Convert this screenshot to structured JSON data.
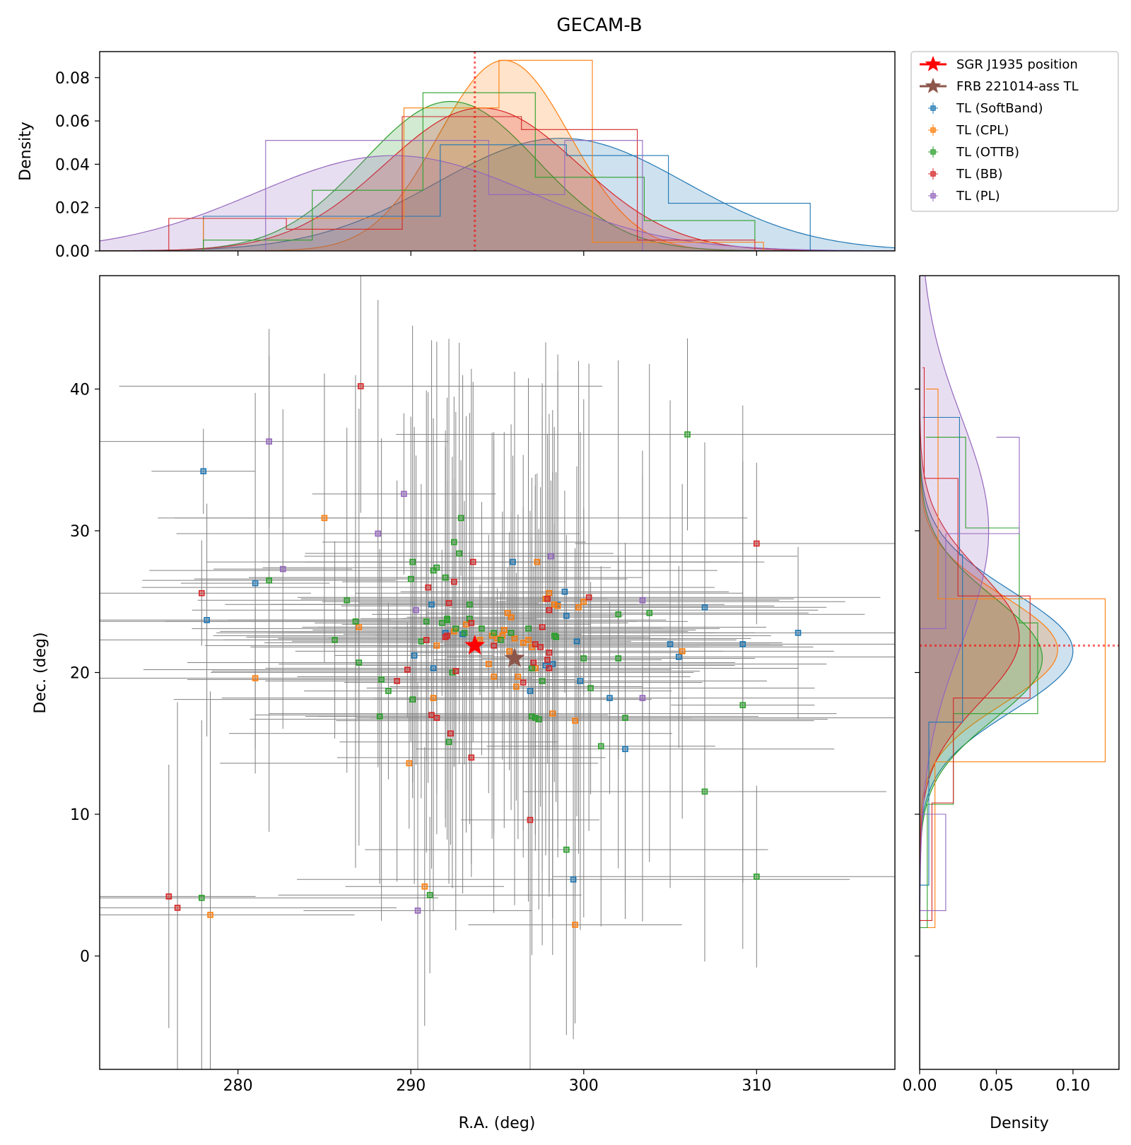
{
  "chart_data": {
    "type": "scatter",
    "title": "GECAM-B",
    "xlabel": "R.A. (deg)",
    "ylabel": "Dec. (deg)",
    "xlim": [
      272,
      318
    ],
    "ylim": [
      -8,
      48
    ],
    "x_ticks": [
      "280",
      "290",
      "300",
      "310"
    ],
    "y_ticks": [
      "0",
      "10",
      "20",
      "30",
      "40"
    ],
    "top_hist": {
      "ylabel": "Density",
      "ylim": [
        0,
        0.092
      ],
      "y_ticks": [
        "0.00",
        "0.02",
        "0.04",
        "0.06",
        "0.08"
      ],
      "reference_line_x": 293.7
    },
    "right_hist": {
      "xlabel": "Density",
      "xlim": [
        0,
        0.13
      ],
      "x_ticks": [
        "0.00",
        "0.05",
        "0.10"
      ],
      "reference_line_y": 21.9
    },
    "legend": {
      "placement": "outside top-right",
      "entries": [
        "SGR J1935 position",
        "FRB 221014-ass TL",
        "TL (SoftBand)",
        "TL (CPL)",
        "TL (OTTB)",
        "TL (BB)",
        "TL (PL)"
      ]
    },
    "reference_points": [
      {
        "name": "SGR J1935 position",
        "x": 293.7,
        "y": 21.9,
        "color": "#ff0000",
        "marker": "star"
      },
      {
        "name": "FRB 221014-ass TL",
        "x": 296.0,
        "y": 21.0,
        "color": "#8c564b",
        "marker": "star"
      }
    ],
    "series": [
      {
        "name": "TL (SoftBand)",
        "color": "#1f77b4",
        "points": [
          [
            278.0,
            34.2
          ],
          [
            278.2,
            23.7
          ],
          [
            281.0,
            26.3
          ],
          [
            291.2,
            24.8
          ],
          [
            291.3,
            20.3
          ],
          [
            292.0,
            22.8
          ],
          [
            293.0,
            22.7
          ],
          [
            295.9,
            27.8
          ],
          [
            296.9,
            18.7
          ],
          [
            298.2,
            20.6
          ],
          [
            298.9,
            25.7
          ],
          [
            299.6,
            22.2
          ],
          [
            299.8,
            19.4
          ],
          [
            301.5,
            18.2
          ],
          [
            302.4,
            14.6
          ],
          [
            305.0,
            22.0
          ],
          [
            305.5,
            21.1
          ],
          [
            307.0,
            24.6
          ],
          [
            309.2,
            22.0
          ],
          [
            312.4,
            22.8
          ],
          [
            299.4,
            5.4
          ],
          [
            298.5,
            24.8
          ],
          [
            299.0,
            24.0
          ],
          [
            297.8,
            20.5
          ],
          [
            290.2,
            21.2
          ]
        ],
        "hist_y_bins": [
          5.0,
          16.5,
          28.3,
          38.0
        ],
        "hist_y_density": [
          0.006,
          0.028,
          0.026,
          0.002
        ],
        "hist_x_bins": [
          278,
          291.7,
          299,
          304.9,
          313.1
        ],
        "hist_x_density": [
          0.016,
          0.049,
          0.044,
          0.022
        ],
        "kde_x": {
          "mu": 298.7,
          "sigma": 7.2,
          "peak": 0.052
        },
        "kde_y": {
          "mu": 21.5,
          "sigma": 4.2,
          "peak": 0.1
        }
      },
      {
        "name": "TL (CPL)",
        "color": "#ff7f0e",
        "points": [
          [
            278.4,
            2.9
          ],
          [
            281.0,
            19.6
          ],
          [
            285.0,
            30.9
          ],
          [
            287.0,
            23.2
          ],
          [
            289.9,
            13.6
          ],
          [
            290.8,
            4.9
          ],
          [
            291.3,
            18.2
          ],
          [
            291.5,
            21.9
          ],
          [
            292.5,
            22.9
          ],
          [
            293.2,
            23.4
          ],
          [
            294.0,
            22.3
          ],
          [
            294.5,
            20.6
          ],
          [
            294.7,
            22.6
          ],
          [
            295.0,
            22.4
          ],
          [
            295.3,
            22.6
          ],
          [
            295.4,
            23.0
          ],
          [
            295.6,
            24.2
          ],
          [
            295.7,
            21.5
          ],
          [
            295.8,
            23.9
          ],
          [
            296.0,
            22.4
          ],
          [
            296.1,
            19.0
          ],
          [
            296.5,
            22.1
          ],
          [
            296.8,
            22.3
          ],
          [
            297.0,
            21.8
          ],
          [
            297.2,
            20.3
          ],
          [
            297.8,
            25.2
          ],
          [
            298.0,
            25.6
          ],
          [
            298.3,
            24.8
          ],
          [
            298.5,
            24.7
          ],
          [
            299.5,
            2.2
          ],
          [
            299.5,
            16.6
          ],
          [
            299.7,
            24.6
          ],
          [
            300.0,
            25.0
          ],
          [
            305.7,
            21.5
          ],
          [
            298.2,
            17.1
          ],
          [
            297.3,
            27.8
          ],
          [
            296.2,
            19.7
          ],
          [
            294.8,
            19.7
          ]
        ],
        "hist_y_bins": [
          2.0,
          13.7,
          25.2,
          40.0
        ],
        "hist_y_density": [
          0.01,
          0.121,
          0.012,
          0.004
        ],
        "hist_x_bins": [
          278,
          289.6,
          295.1,
          300.5,
          310.4
        ],
        "hist_x_density": [
          0.015,
          0.066,
          0.088,
          0.004
        ],
        "kde_x": {
          "mu": 295.4,
          "sigma": 3.8,
          "peak": 0.088
        },
        "kde_y": {
          "mu": 21.6,
          "sigma": 3.8,
          "peak": 0.09
        }
      },
      {
        "name": "TL (OTTB)",
        "color": "#2ca02c",
        "points": [
          [
            277.9,
            4.1
          ],
          [
            281.8,
            26.5
          ],
          [
            285.6,
            22.3
          ],
          [
            286.3,
            25.1
          ],
          [
            286.8,
            23.6
          ],
          [
            287.0,
            20.7
          ],
          [
            288.2,
            16.9
          ],
          [
            288.3,
            19.5
          ],
          [
            288.7,
            18.7
          ],
          [
            290.0,
            26.6
          ],
          [
            290.1,
            27.8
          ],
          [
            290.1,
            18.1
          ],
          [
            290.6,
            22.2
          ],
          [
            290.9,
            23.6
          ],
          [
            291.1,
            4.3
          ],
          [
            291.3,
            27.2
          ],
          [
            291.5,
            27.4
          ],
          [
            291.8,
            23.5
          ],
          [
            292.0,
            26.7
          ],
          [
            292.1,
            23.8
          ],
          [
            292.1,
            23.7
          ],
          [
            292.2,
            15.1
          ],
          [
            292.4,
            20.0
          ],
          [
            292.5,
            29.2
          ],
          [
            292.6,
            23.1
          ],
          [
            292.8,
            28.4
          ],
          [
            292.9,
            30.9
          ],
          [
            293.1,
            22.8
          ],
          [
            293.4,
            23.8
          ],
          [
            293.4,
            24.8
          ],
          [
            294.1,
            23.1
          ],
          [
            294.8,
            22.8
          ],
          [
            295.2,
            22.3
          ],
          [
            295.8,
            22.8
          ],
          [
            296.8,
            23.1
          ],
          [
            297.0,
            20.3
          ],
          [
            297.2,
            16.8
          ],
          [
            297.4,
            16.7
          ],
          [
            297.6,
            19.4
          ],
          [
            298.3,
            22.6
          ],
          [
            299.0,
            7.5
          ],
          [
            300.0,
            21.0
          ],
          [
            300.4,
            18.9
          ],
          [
            301.0,
            14.8
          ],
          [
            302.0,
            24.1
          ],
          [
            302.0,
            21.0
          ],
          [
            302.4,
            16.8
          ],
          [
            303.8,
            24.2
          ],
          [
            306.0,
            36.8
          ],
          [
            307.0,
            11.6
          ],
          [
            309.2,
            17.7
          ],
          [
            310.0,
            5.6
          ],
          [
            298.4,
            22.5
          ],
          [
            297.0,
            16.9
          ]
        ],
        "hist_y_bins": [
          2.0,
          10.7,
          17.1,
          23.5,
          30.2,
          36.6
        ],
        "hist_y_density": [
          0.005,
          0.022,
          0.077,
          0.065,
          0.03,
          0.004
        ],
        "hist_x_bins": [
          278,
          284.3,
          290.7,
          297.2,
          303.5,
          309.9
        ],
        "hist_x_density": [
          0.005,
          0.028,
          0.073,
          0.034,
          0.014,
          0.005
        ],
        "kde_x": {
          "mu": 292.3,
          "sigma": 5.0,
          "peak": 0.069
        },
        "kde_y": {
          "mu": 21.0,
          "sigma": 4.3,
          "peak": 0.08
        }
      },
      {
        "name": "TL (BB)",
        "color": "#d62728",
        "points": [
          [
            276.0,
            4.2
          ],
          [
            276.5,
            3.4
          ],
          [
            277.9,
            25.6
          ],
          [
            287.1,
            40.2
          ],
          [
            289.2,
            19.4
          ],
          [
            289.8,
            20.2
          ],
          [
            290.9,
            22.3
          ],
          [
            291.0,
            26.0
          ],
          [
            291.2,
            17.0
          ],
          [
            291.5,
            16.8
          ],
          [
            292.0,
            22.5
          ],
          [
            292.2,
            24.9
          ],
          [
            292.3,
            15.7
          ],
          [
            292.5,
            26.4
          ],
          [
            292.6,
            20.1
          ],
          [
            293.5,
            14.0
          ],
          [
            293.6,
            27.8
          ],
          [
            293.5,
            23.5
          ],
          [
            294.8,
            21.9
          ],
          [
            296.5,
            19.3
          ],
          [
            296.9,
            9.6
          ],
          [
            297.1,
            20.7
          ],
          [
            297.2,
            22.0
          ],
          [
            297.6,
            23.2
          ],
          [
            297.9,
            20.9
          ],
          [
            297.9,
            25.2
          ],
          [
            298.0,
            21.4
          ],
          [
            298.0,
            24.4
          ],
          [
            297.5,
            21.8
          ],
          [
            300.3,
            25.3
          ],
          [
            310.0,
            29.1
          ],
          [
            292.1,
            22.6
          ],
          [
            298.0,
            20.3
          ]
        ],
        "hist_y_bins": [
          2.5,
          10.8,
          18.2,
          25.4,
          33.7,
          41.5
        ],
        "hist_y_density": [
          0.008,
          0.022,
          0.072,
          0.025,
          0.003,
          0.002
        ],
        "hist_x_bins": [
          276,
          282.8,
          289.5,
          296.4,
          303.1,
          309.9
        ],
        "hist_x_density": [
          0.015,
          0.01,
          0.062,
          0.056,
          0.005,
          0.0
        ],
        "kde_x": {
          "mu": 294.1,
          "sigma": 5.6,
          "peak": 0.066
        },
        "kde_y": {
          "mu": 22.5,
          "sigma": 4.6,
          "peak": 0.065
        }
      },
      {
        "name": "TL (PL)",
        "color": "#9467bd",
        "points": [
          [
            281.8,
            36.3
          ],
          [
            282.6,
            27.3
          ],
          [
            288.1,
            29.8
          ],
          [
            289.6,
            32.6
          ],
          [
            290.3,
            24.4
          ],
          [
            290.4,
            3.2
          ],
          [
            298.1,
            28.2
          ],
          [
            303.4,
            25.1
          ],
          [
            303.4,
            18.2
          ]
        ],
        "hist_y_bins": [
          3.2,
          10.0,
          23.1,
          29.8,
          36.6
        ],
        "hist_y_density": [
          0.017,
          0.0,
          0.017,
          0.065,
          0.05
        ],
        "hist_x_bins": [
          281.6,
          294.5,
          298.9,
          303.4
        ],
        "hist_x_density": [
          0.051,
          0.026,
          0.051
        ],
        "kde_x": {
          "mu": 289.0,
          "sigma": 8.0,
          "peak": 0.044
        },
        "kde_y": {
          "mu": 30.0,
          "sigma": 8.0,
          "peak": 0.045
        }
      }
    ]
  }
}
